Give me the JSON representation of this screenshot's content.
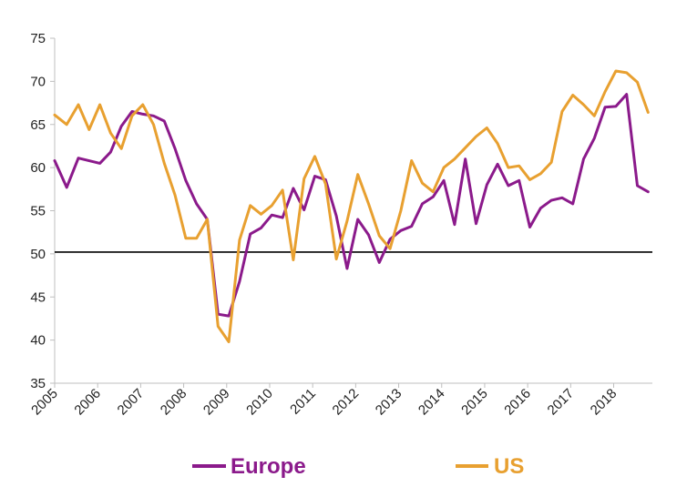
{
  "chart_data": {
    "type": "line",
    "title": "",
    "xlabel": "",
    "ylabel": "",
    "ylim": [
      35,
      75
    ],
    "yticks": [
      35,
      40,
      45,
      50,
      55,
      60,
      65,
      70,
      75
    ],
    "xlim": [
      2005,
      2018.9
    ],
    "xticks": [
      "2005",
      "2006",
      "2007",
      "2008",
      "2009",
      "2010",
      "2011",
      "2012",
      "2013",
      "2014",
      "2015",
      "2016",
      "2017",
      "2018"
    ],
    "grid": false,
    "legend": "bottom",
    "reference_line": 50.2,
    "series": [
      {
        "name": "Europe",
        "color": "#8B1A8B",
        "points": [
          [
            2005.0,
            60.8
          ],
          [
            2005.28,
            57.7
          ],
          [
            2005.55,
            61.1
          ],
          [
            2006.05,
            60.5
          ],
          [
            2006.3,
            61.8
          ],
          [
            2006.55,
            64.8
          ],
          [
            2006.8,
            66.5
          ],
          [
            2007.05,
            66.2
          ],
          [
            2007.3,
            66.0
          ],
          [
            2007.55,
            65.4
          ],
          [
            2007.8,
            62.2
          ],
          [
            2008.05,
            58.5
          ],
          [
            2008.3,
            55.8
          ],
          [
            2008.55,
            54.0
          ],
          [
            2008.8,
            43.0
          ],
          [
            2009.05,
            42.8
          ],
          [
            2009.3,
            46.8
          ],
          [
            2009.55,
            52.3
          ],
          [
            2009.8,
            53.0
          ],
          [
            2010.05,
            54.5
          ],
          [
            2010.3,
            54.2
          ],
          [
            2010.55,
            57.6
          ],
          [
            2010.8,
            55.1
          ],
          [
            2011.05,
            59.0
          ],
          [
            2011.3,
            58.6
          ],
          [
            2011.55,
            54.4
          ],
          [
            2011.8,
            48.3
          ],
          [
            2012.05,
            54.0
          ],
          [
            2012.3,
            52.2
          ],
          [
            2012.55,
            49.0
          ],
          [
            2012.8,
            51.7
          ],
          [
            2013.05,
            52.7
          ],
          [
            2013.3,
            53.2
          ],
          [
            2013.55,
            55.8
          ],
          [
            2013.8,
            56.6
          ],
          [
            2014.05,
            58.5
          ],
          [
            2014.3,
            53.4
          ],
          [
            2014.55,
            61.0
          ],
          [
            2014.8,
            53.5
          ],
          [
            2015.05,
            58.0
          ],
          [
            2015.3,
            60.4
          ],
          [
            2015.55,
            57.9
          ],
          [
            2015.8,
            58.5
          ],
          [
            2016.05,
            53.1
          ],
          [
            2016.3,
            55.3
          ],
          [
            2016.55,
            56.2
          ],
          [
            2016.8,
            56.5
          ],
          [
            2017.05,
            55.8
          ],
          [
            2017.3,
            61.0
          ],
          [
            2017.55,
            63.4
          ],
          [
            2017.8,
            67.0
          ],
          [
            2018.05,
            67.1
          ],
          [
            2018.3,
            68.5
          ],
          [
            2018.55,
            57.9
          ],
          [
            2018.8,
            57.2
          ]
        ]
      },
      {
        "name": "US",
        "color": "#E8A030",
        "points": [
          [
            2005.0,
            66.1
          ],
          [
            2005.28,
            65.0
          ],
          [
            2005.55,
            67.3
          ],
          [
            2005.8,
            64.4
          ],
          [
            2006.05,
            67.3
          ],
          [
            2006.3,
            64.0
          ],
          [
            2006.55,
            62.2
          ],
          [
            2006.8,
            66.0
          ],
          [
            2007.05,
            67.3
          ],
          [
            2007.3,
            65.0
          ],
          [
            2007.55,
            60.5
          ],
          [
            2007.8,
            56.8
          ],
          [
            2008.05,
            51.8
          ],
          [
            2008.3,
            51.8
          ],
          [
            2008.55,
            54.0
          ],
          [
            2008.8,
            41.6
          ],
          [
            2009.05,
            39.8
          ],
          [
            2009.3,
            51.6
          ],
          [
            2009.55,
            55.6
          ],
          [
            2009.8,
            54.6
          ],
          [
            2010.05,
            55.6
          ],
          [
            2010.3,
            57.4
          ],
          [
            2010.55,
            49.3
          ],
          [
            2010.8,
            58.7
          ],
          [
            2011.05,
            61.3
          ],
          [
            2011.3,
            58.1
          ],
          [
            2011.55,
            49.4
          ],
          [
            2011.8,
            53.8
          ],
          [
            2012.05,
            59.2
          ],
          [
            2012.3,
            55.8
          ],
          [
            2012.55,
            52.1
          ],
          [
            2012.8,
            50.6
          ],
          [
            2013.05,
            55.0
          ],
          [
            2013.3,
            60.8
          ],
          [
            2013.55,
            58.2
          ],
          [
            2013.8,
            57.2
          ],
          [
            2014.05,
            60.0
          ],
          [
            2014.3,
            61.0
          ],
          [
            2014.55,
            62.3
          ],
          [
            2014.8,
            63.6
          ],
          [
            2015.05,
            64.6
          ],
          [
            2015.3,
            62.8
          ],
          [
            2015.55,
            60.0
          ],
          [
            2015.8,
            60.2
          ],
          [
            2016.05,
            58.6
          ],
          [
            2016.3,
            59.3
          ],
          [
            2016.55,
            60.6
          ],
          [
            2016.8,
            66.5
          ],
          [
            2017.05,
            68.4
          ],
          [
            2017.3,
            67.3
          ],
          [
            2017.55,
            66.0
          ],
          [
            2017.8,
            68.8
          ],
          [
            2018.05,
            71.2
          ],
          [
            2018.3,
            71.0
          ],
          [
            2018.55,
            69.9
          ],
          [
            2018.8,
            66.4
          ]
        ]
      }
    ]
  }
}
